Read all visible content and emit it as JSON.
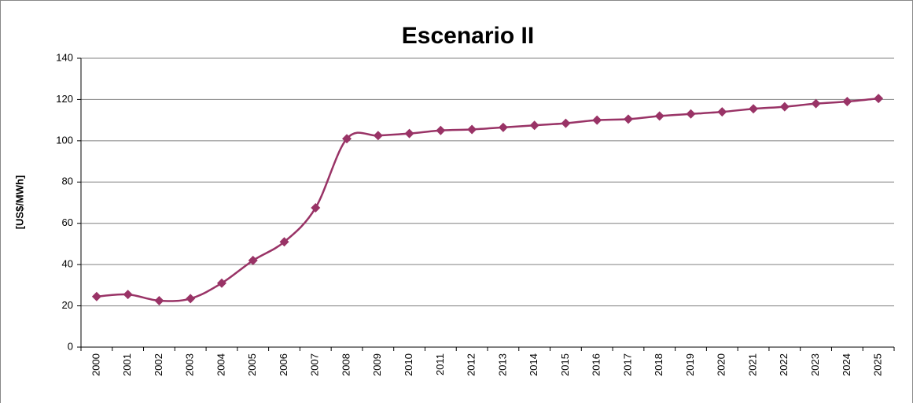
{
  "chart_data": {
    "type": "line",
    "title": "Escenario II",
    "y_label": "[US$/MWh]",
    "categories": [
      "2000",
      "2001",
      "2002",
      "2003",
      "2004",
      "2005",
      "2006",
      "2007",
      "2008",
      "2009",
      "2010",
      "2011",
      "2012",
      "2013",
      "2014",
      "2015",
      "2016",
      "2017",
      "2018",
      "2019",
      "2020",
      "2021",
      "2022",
      "2023",
      "2024",
      "2025"
    ],
    "series": [
      {
        "name": "Escenario II",
        "color": "#993366",
        "values": [
          24.5,
          25.5,
          22.5,
          23.5,
          31,
          42,
          51,
          67.5,
          101,
          102.5,
          103.5,
          105,
          105.5,
          106.5,
          107.5,
          108.5,
          110,
          110.5,
          112,
          113,
          114,
          115.5,
          116.5,
          118,
          119,
          120.5
        ]
      }
    ],
    "ylim": [
      0,
      140
    ],
    "yticks": [
      0,
      20,
      40,
      60,
      80,
      100,
      120,
      140
    ],
    "grid": true
  }
}
